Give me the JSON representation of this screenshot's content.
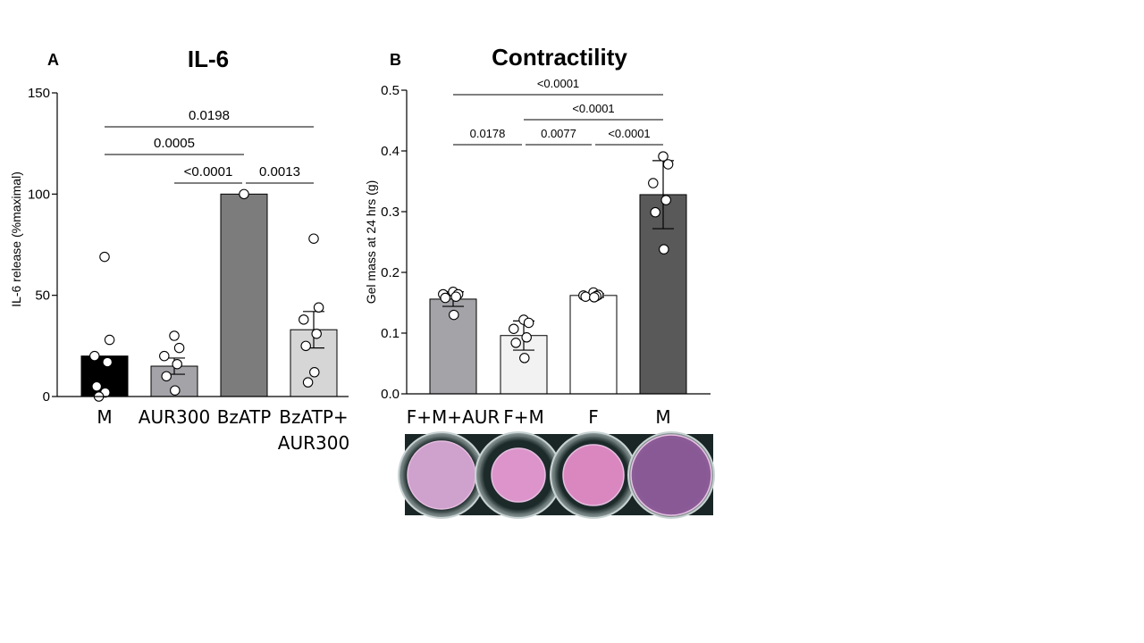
{
  "colors": {
    "background": "#ffffff",
    "axis": "#000000",
    "point_fill": "#ffffff"
  },
  "chart_data": [
    {
      "panel": "A",
      "type": "bar",
      "title": "IL-6",
      "ylabel": "IL-6 release (%maximal)",
      "ylim": [
        0,
        150
      ],
      "yticks": [
        0,
        50,
        100,
        150
      ],
      "categories": [
        "M",
        "AUR300",
        "BzATP",
        "BzATP+\nAUR300"
      ],
      "values": [
        20,
        15,
        100,
        33
      ],
      "errors": [
        null,
        4,
        null,
        9
      ],
      "bar_colors": [
        "#000000",
        "#a3a3a8",
        "#7c7c7c",
        "#d6d6d6"
      ],
      "points": [
        [
          69,
          28,
          20,
          17,
          5,
          2,
          0
        ],
        [
          30,
          24,
          20,
          16,
          10,
          3
        ],
        [
          100
        ],
        [
          78,
          44,
          38,
          31,
          25,
          12,
          7
        ]
      ],
      "comparisons": [
        {
          "from": "M",
          "to": "BzATP+\nAUR300",
          "label": "0.0198"
        },
        {
          "from": "M",
          "to": "BzATP",
          "label": "0.0005"
        },
        {
          "from": "AUR300",
          "to": "BzATP",
          "label": "<0.0001"
        },
        {
          "from": "BzATP",
          "to": "BzATP+\nAUR300",
          "label": "0.0013"
        }
      ]
    },
    {
      "panel": "B",
      "type": "bar",
      "title": "Contractility",
      "ylabel": "Gel mass at 24 hrs (g)",
      "ylim": [
        0,
        0.5
      ],
      "yticks": [
        "0.0",
        "0.1",
        "0.2",
        "0.3",
        "0.4",
        "0.5"
      ],
      "categories": [
        "F+M+AUR",
        "F+M",
        "F",
        "M"
      ],
      "values": [
        0.156,
        0.096,
        0.162,
        0.328
      ],
      "errors": [
        0.012,
        0.024,
        0.003,
        0.056
      ],
      "bar_colors": [
        "#a3a3a8",
        "#f2f2f2",
        "#ffffff",
        "#595959"
      ],
      "points": [
        [
          0.168,
          0.164,
          0.164,
          0.16,
          0.158,
          0.13
        ],
        [
          0.122,
          0.117,
          0.107,
          0.093,
          0.084,
          0.059
        ],
        [
          0.167,
          0.163,
          0.162,
          0.161,
          0.16,
          0.159
        ],
        [
          0.391,
          0.378,
          0.347,
          0.319,
          0.299,
          0.238
        ]
      ],
      "comparisons": [
        {
          "from": "F+M+AUR",
          "to": "M",
          "label": "<0.0001"
        },
        {
          "from": "F+M",
          "to": "M",
          "label": "<0.0001"
        },
        {
          "from": "F+M+AUR",
          "to": "F+M",
          "label": "0.0178"
        },
        {
          "from": "F+M",
          "to": "F",
          "label": "0.0077"
        },
        {
          "from": "F",
          "to": "M",
          "label": "<0.0001"
        }
      ]
    }
  ],
  "photo": {
    "description_icon": "gel-wells-photo",
    "wells": [
      {
        "label": "F+M+AUR",
        "gel_color": "#d9a8d6"
      },
      {
        "label": "F+M",
        "gel_color": "#e79ad4"
      },
      {
        "label": "F",
        "gel_color": "#e58cc9"
      },
      {
        "label": "M",
        "gel_color": "#8e5c9a"
      }
    ]
  }
}
